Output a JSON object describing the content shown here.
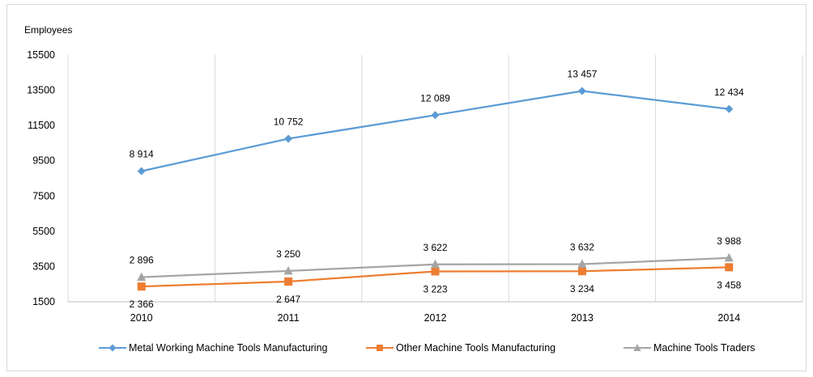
{
  "chart_data": {
    "type": "line",
    "title": "",
    "xlabel": "",
    "ylabel": "Employees",
    "categories": [
      "2010",
      "2011",
      "2012",
      "2013",
      "2014"
    ],
    "ylim": [
      1500,
      15500
    ],
    "yticks": [
      "1500",
      "3500",
      "5500",
      "7500",
      "9500",
      "11500",
      "13500",
      "15500"
    ],
    "grid": "vertical",
    "legend_position": "bottom",
    "series": [
      {
        "name": "Metal Working Machine Tools Manufacturing",
        "values": [
          8914,
          10752,
          12089,
          13457,
          12434
        ],
        "labels": [
          "8 914",
          "10 752",
          "12 089",
          "13 457",
          "12 434"
        ],
        "color": "#5b9bd5",
        "marker": "diamond"
      },
      {
        "name": "Other Machine Tools Manufacturing",
        "values": [
          2366,
          2647,
          3223,
          3234,
          3458
        ],
        "labels": [
          "2 366",
          "2 647",
          "3 223",
          "3 234",
          "3 458"
        ],
        "color": "#ed7d31",
        "marker": "square"
      },
      {
        "name": "Machine Tools Traders",
        "values": [
          2896,
          3250,
          3622,
          3632,
          3988
        ],
        "labels": [
          "2 896",
          "3 250",
          "3 622",
          "3 632",
          "3 988"
        ],
        "color": "#a5a5a5",
        "marker": "triangle"
      }
    ]
  }
}
